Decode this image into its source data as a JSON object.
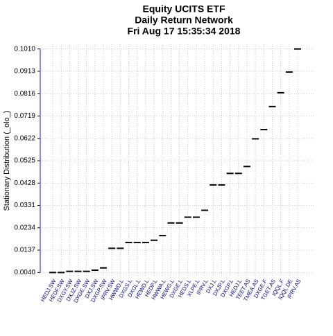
{
  "chart_data": {
    "type": "dash",
    "title": "Equity UCITS ETF",
    "subtitle": "Daily Return Network",
    "date": "Fri Aug 17 15:35:34 2018",
    "y_label": "Stationary Distribution (_olo_)",
    "categories": [
      "HEDJ.SW",
      "HEDF.SW",
      "DXGY.SW",
      "DXJZ.SW",
      "DXGE.SW",
      "DXJ.SW",
      "DXGP.SW",
      "IPRV.SW",
      "HWWD.L",
      "DXGS.L",
      "DXGL.L",
      "HEWD.L",
      "HEDP.L",
      "HWWA.L",
      "HEWG.L",
      "DXGE.L",
      "HEDS.L",
      "XLPE.L",
      "IPRV.L",
      "DXJ.L",
      "DXJP.L",
      "DXGP.L",
      "HEDJ.L",
      "TEET.AS",
      "TMEA.AS",
      "DXGE.F",
      "TGET.AS",
      "IQQL.F",
      "IQQL.DE",
      "IPRV.AS"
    ],
    "values": [
      0.004,
      0.004,
      0.0045,
      0.0045,
      0.0045,
      0.005,
      0.006,
      0.0145,
      0.0145,
      0.017,
      0.017,
      0.017,
      0.018,
      0.02,
      0.0255,
      0.0255,
      0.028,
      0.028,
      0.031,
      0.042,
      0.042,
      0.047,
      0.047,
      0.05,
      0.062,
      0.066,
      0.076,
      0.082,
      0.091,
      0.101
    ],
    "color": "#000000",
    "label_color": "#00008b",
    "axis_color": "#6a5acd",
    "ylim": [
      0.002,
      0.103
    ],
    "yticks": [
      {
        "value": 0.004,
        "label": "0.0040"
      },
      0.0137,
      0.0234,
      0.0331,
      0.0428,
      0.0525,
      0.0622,
      0.0719,
      0.0816,
      0.0913,
      {
        "value": 0.101,
        "label": "0.1010"
      }
    ],
    "grid": true
  }
}
